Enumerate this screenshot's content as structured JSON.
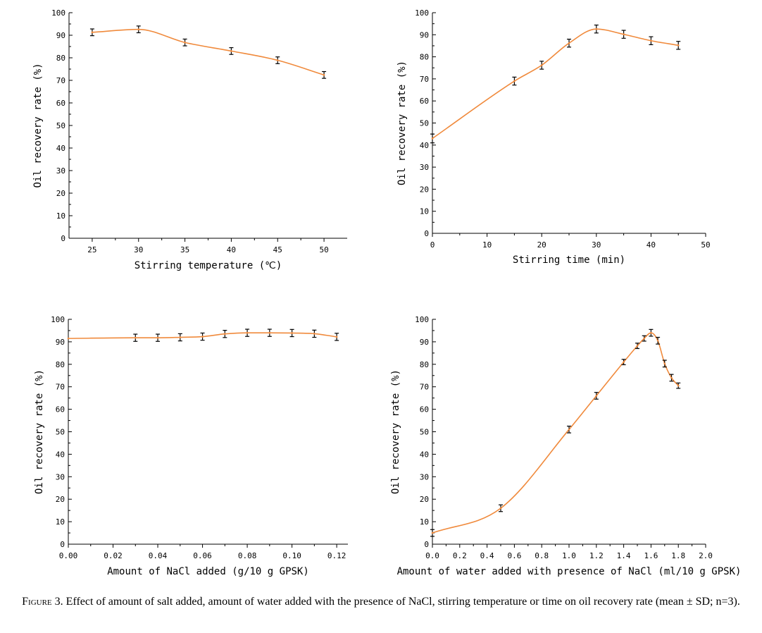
{
  "colors": {
    "line": "#f08a3c",
    "axis": "#000000"
  },
  "chart_data": [
    {
      "type": "line",
      "error_bars": true,
      "xlabel": "Stirring temperature (℃)",
      "ylabel": "Oil recovery rate (%)",
      "xlim": [
        22.5,
        52.5
      ],
      "ylim": [
        0,
        100
      ],
      "xticks": [
        25,
        30,
        35,
        40,
        45,
        50
      ],
      "xtick_labels": [
        "25",
        "30",
        "35",
        "40",
        "45",
        "50"
      ],
      "yticks": [
        0,
        10,
        20,
        30,
        40,
        50,
        60,
        70,
        80,
        90,
        100
      ],
      "x": [
        25,
        30,
        35,
        40,
        45,
        50
      ],
      "y": [
        91.3,
        92.6,
        86.8,
        83.0,
        78.9,
        72.4
      ],
      "err": [
        1.5,
        1.5,
        1.5,
        1.5,
        1.5,
        1.5
      ]
    },
    {
      "type": "line",
      "error_bars": true,
      "xlabel": "Stirring time (min)",
      "ylabel": "Oil recovery rate (%)",
      "xlim": [
        0,
        50
      ],
      "ylim": [
        0,
        100
      ],
      "xticks": [
        0,
        10,
        20,
        30,
        40,
        50
      ],
      "xtick_labels": [
        "0",
        "10",
        "20",
        "30",
        "40",
        "50"
      ],
      "yticks": [
        0,
        10,
        20,
        30,
        40,
        50,
        60,
        70,
        80,
        90,
        100
      ],
      "x": [
        0,
        15,
        20,
        25,
        30,
        35,
        40,
        45
      ],
      "y": [
        43.0,
        69.0,
        76.2,
        86.2,
        92.6,
        90.2,
        87.3,
        85.2
      ],
      "err": [
        2.0,
        1.8,
        1.8,
        1.8,
        1.8,
        1.8,
        1.8,
        1.8
      ]
    },
    {
      "type": "line",
      "error_bars": true,
      "xlabel": "Amount of NaCl added (g/10 g GPSK)",
      "ylabel": "Oil recovery rate (%)",
      "xlim": [
        0,
        0.125
      ],
      "ylim": [
        0,
        100
      ],
      "xticks": [
        0,
        0.02,
        0.04,
        0.06,
        0.08,
        0.1,
        0.12
      ],
      "xtick_labels": [
        "0.00",
        "0.02",
        "0.04",
        "0.06",
        "0.08",
        "0.10",
        "0.12"
      ],
      "yticks": [
        0,
        10,
        20,
        30,
        40,
        50,
        60,
        70,
        80,
        90,
        100
      ],
      "x": [
        0,
        0.03,
        0.04,
        0.05,
        0.06,
        0.07,
        0.08,
        0.09,
        0.1,
        0.11,
        0.12
      ],
      "y": [
        91.5,
        91.8,
        91.8,
        92.0,
        92.3,
        93.5,
        94.0,
        94.0,
        93.9,
        93.6,
        92.2
      ],
      "err": [
        0,
        1.6,
        1.6,
        1.6,
        1.6,
        1.6,
        1.6,
        1.6,
        1.6,
        1.6,
        1.6
      ]
    },
    {
      "type": "line",
      "error_bars": true,
      "xlabel": "Amount of water added with presence of NaCl (ml/10 g GPSK)",
      "ylabel": "Oil recovery rate (%)",
      "xlim": [
        0,
        2.0
      ],
      "ylim": [
        0,
        100
      ],
      "xticks": [
        0,
        0.2,
        0.4,
        0.6,
        0.8,
        1.0,
        1.2,
        1.4,
        1.6,
        1.8,
        2.0
      ],
      "xtick_labels": [
        "0.0",
        "0.2",
        "0.4",
        "0.6",
        "0.8",
        "1.0",
        "1.2",
        "1.4",
        "1.6",
        "1.8",
        "2.0"
      ],
      "yticks": [
        0,
        10,
        20,
        30,
        40,
        50,
        60,
        70,
        80,
        90,
        100
      ],
      "x": [
        0,
        0.5,
        1.0,
        1.2,
        1.4,
        1.5,
        1.55,
        1.6,
        1.65,
        1.7,
        1.75,
        1.8
      ],
      "y": [
        5.0,
        16.0,
        51.0,
        66.0,
        81.0,
        88.2,
        91.5,
        94.0,
        90.5,
        80.3,
        74.0,
        70.5
      ],
      "err": [
        1.5,
        1.5,
        1.5,
        1.5,
        1.2,
        1.2,
        1.2,
        1.5,
        1.5,
        1.5,
        1.5,
        1.2
      ]
    }
  ],
  "caption": {
    "lead": "Figure 3.",
    "text": " Effect of amount of salt added, amount of water added with the presence of NaCl, stirring temperature or time on oil recovery rate (mean ± SD; n=3)."
  }
}
